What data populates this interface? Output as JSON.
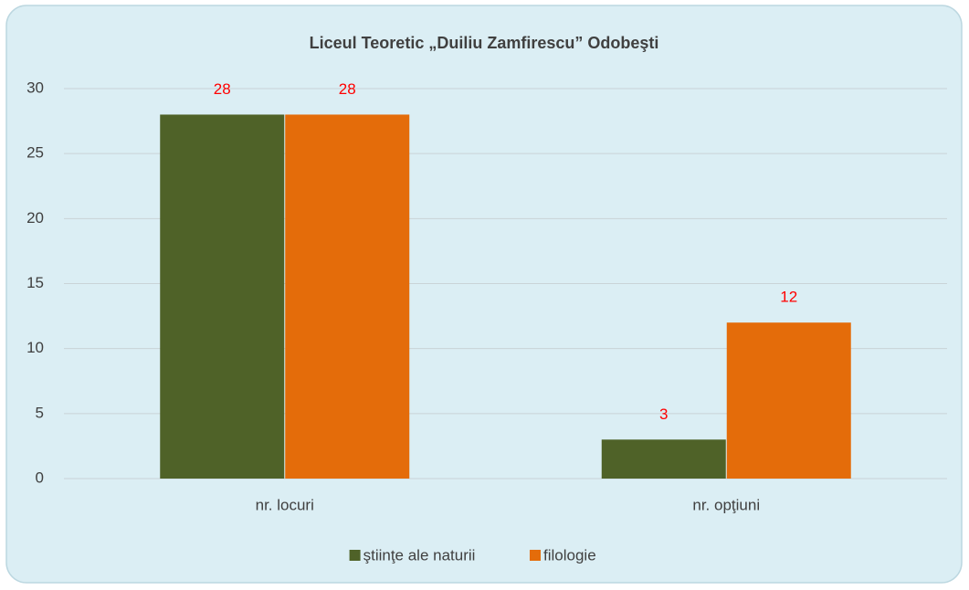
{
  "chart_data": {
    "type": "bar",
    "title": "Liceul Teoretic „Duiliu Zamfirescu” Odobeşti",
    "categories": [
      "nr. locuri",
      "nr. opţiuni"
    ],
    "series": [
      {
        "name": "ştiinţe ale naturii",
        "color": "#4f6228",
        "values": [
          28,
          3
        ]
      },
      {
        "name": "filologie",
        "color": "#e46c0a",
        "values": [
          28,
          12
        ]
      }
    ],
    "ylim": [
      0,
      30
    ],
    "yticks": [
      0,
      5,
      10,
      15,
      20,
      25,
      30
    ],
    "grid": true,
    "legend": "bottom",
    "value_label_color": "#ff0000"
  }
}
